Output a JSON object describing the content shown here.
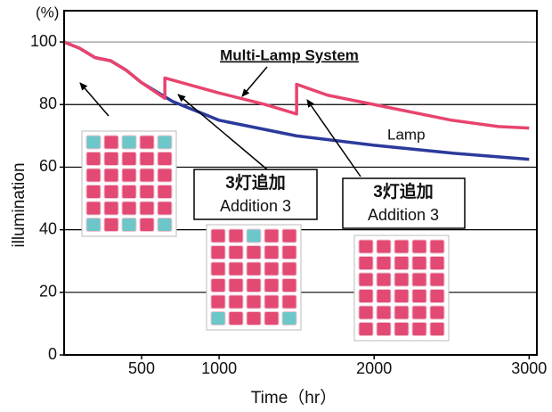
{
  "chart_data": {
    "type": "line",
    "y_unit": "(%)",
    "y_label": "illumination",
    "x_label": "Time（hr）",
    "xlim": [
      0,
      3050
    ],
    "ylim": [
      0,
      110
    ],
    "xticks": [
      500,
      1000,
      2000,
      3000
    ],
    "yticks": [
      0,
      20,
      40,
      60,
      80,
      100
    ],
    "grid": true,
    "series": [
      {
        "name": "Lamp",
        "color": "#2b3a9b",
        "x": [
          0,
          100,
          200,
          300,
          400,
          500,
          700,
          1000,
          1500,
          2000,
          2500,
          3000
        ],
        "values": [
          100,
          98,
          95,
          94,
          91,
          87,
          81,
          75,
          70,
          67,
          64.5,
          62.5
        ]
      },
      {
        "name": "Multi-Lamp System",
        "color": "#e8446e",
        "x": [
          0,
          100,
          200,
          300,
          400,
          500,
          650,
          650,
          1000,
          1300,
          1500,
          1500,
          1700,
          2000,
          2500,
          2800,
          3000
        ],
        "values": [
          100,
          98,
          95,
          94,
          91,
          87,
          82,
          88.5,
          83.7,
          80,
          77,
          86.5,
          83,
          80,
          75,
          73,
          72.5
        ]
      }
    ],
    "annotations": [
      "3灯追加",
      "Addition 3",
      "3灯追加",
      "Addition 3"
    ]
  }
}
